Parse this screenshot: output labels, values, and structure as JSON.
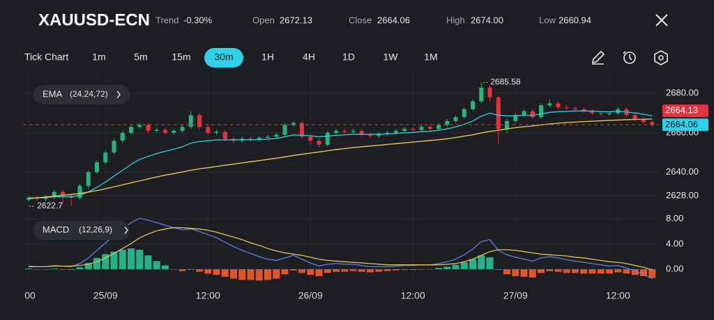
{
  "header": {
    "symbol": "XAUUSD-ECN",
    "stats": [
      {
        "label": "Trend",
        "value": "-0.30%"
      },
      {
        "label": "Open",
        "value": "2672.13"
      },
      {
        "label": "Close",
        "value": "2664.06"
      },
      {
        "label": "High",
        "value": "2674.00"
      },
      {
        "label": "Low",
        "value": "2660.94"
      }
    ]
  },
  "toolbar": {
    "tick_chart": "Tick Chart",
    "intervals": [
      "1m",
      "5m",
      "15m",
      "30m",
      "1H",
      "4H",
      "1D",
      "1W",
      "1M"
    ],
    "active": 3
  },
  "chart_data": [
    {
      "type": "candlestick",
      "indicator": "EMA",
      "indicator_params": "(24,24,72)",
      "open": [
        2626,
        2627,
        2626.5,
        2627.5,
        2630,
        2628,
        2627,
        2633,
        2640,
        2645,
        2650,
        2656,
        2660,
        2663,
        2664,
        2661,
        2661.5,
        2660,
        2661,
        2663,
        2669,
        2663,
        2660,
        2660.5,
        2657,
        2656,
        2657,
        2656.5,
        2657.5,
        2658,
        2659,
        2664,
        2665,
        2658,
        2656,
        2654,
        2660,
        2661,
        2660.5,
        2661,
        2659,
        2658.5,
        2659.5,
        2660,
        2661,
        2662,
        2661.5,
        2663,
        2662,
        2664,
        2666,
        2668,
        2672,
        2676,
        2683,
        2678,
        2662,
        2666,
        2669,
        2671,
        2668,
        2674,
        2675,
        2673,
        2672.5,
        2672,
        2671,
        2670,
        2669.5,
        2670,
        2672,
        2669,
        2667,
        2665.5
      ],
      "high": [
        2628,
        2628,
        2628.5,
        2631,
        2631,
        2629,
        2634,
        2641,
        2646,
        2651,
        2657,
        2661,
        2664,
        2665,
        2665,
        2662.5,
        2662.5,
        2662,
        2664,
        2671,
        2670,
        2664,
        2661.5,
        2661.5,
        2658,
        2658,
        2658,
        2658.5,
        2659,
        2660,
        2665,
        2666,
        2666,
        2659,
        2657,
        2661,
        2662,
        2662,
        2662,
        2662,
        2660,
        2660.5,
        2661,
        2662,
        2663,
        2663,
        2664,
        2664,
        2665,
        2667,
        2669,
        2673,
        2677,
        2685.58,
        2684,
        2679,
        2667,
        2670,
        2672,
        2672,
        2675,
        2677,
        2676,
        2674,
        2673.5,
        2673,
        2672,
        2671,
        2671,
        2673,
        2673,
        2670,
        2668,
        2666.5
      ],
      "low": [
        2625,
        2625.5,
        2625.5,
        2626.5,
        2624,
        2622.7,
        2626,
        2632,
        2639,
        2644,
        2649,
        2655,
        2659,
        2662,
        2660,
        2660,
        2659,
        2659,
        2660,
        2662,
        2662,
        2659,
        2659,
        2655.5,
        2654.5,
        2655,
        2655.5,
        2655.5,
        2656.5,
        2657,
        2658,
        2663,
        2657,
        2654,
        2652.5,
        2653,
        2659,
        2659.5,
        2659.5,
        2658,
        2657.5,
        2657.5,
        2658.5,
        2659,
        2660,
        2660.5,
        2660.5,
        2661,
        2661,
        2663,
        2665,
        2667,
        2671,
        2675,
        2676,
        2654.5,
        2660,
        2665,
        2668,
        2667,
        2667,
        2673,
        2672,
        2671.5,
        2671,
        2670,
        2669,
        2668.5,
        2668.5,
        2669,
        2668,
        2666,
        2664.5,
        2663
      ],
      "close": [
        2627,
        2626.5,
        2627.5,
        2630,
        2628,
        2627,
        2633,
        2640,
        2645,
        2650,
        2656,
        2660,
        2663,
        2664,
        2661,
        2661.5,
        2660,
        2661,
        2663,
        2669,
        2663,
        2660,
        2660.5,
        2657,
        2656,
        2657,
        2656.5,
        2657.5,
        2658,
        2659,
        2664,
        2665,
        2658,
        2656,
        2654,
        2660,
        2661,
        2660.5,
        2661,
        2659,
        2658.5,
        2659.5,
        2660,
        2661,
        2662,
        2661.5,
        2663,
        2662,
        2664,
        2666,
        2668,
        2672,
        2676,
        2683,
        2678,
        2662,
        2666,
        2669,
        2671,
        2668,
        2674,
        2675,
        2673,
        2672.5,
        2672,
        2671,
        2670,
        2669.5,
        2670,
        2672,
        2669,
        2667,
        2665.5,
        2664.06
      ],
      "up_color": "#27b47c",
      "down_color": "#e5323f",
      "series": [
        {
          "color": "#34c6d9",
          "values": [
            2627,
            2627,
            2627.1,
            2627.5,
            2627.6,
            2627.5,
            2628.3,
            2630,
            2632.3,
            2635,
            2638,
            2641,
            2644,
            2646.5,
            2648,
            2649.5,
            2650.6,
            2651.7,
            2652.9,
            2654.8,
            2655.6,
            2656,
            2656.4,
            2656.4,
            2656.4,
            2656.5,
            2656.5,
            2656.6,
            2656.8,
            2657.1,
            2658,
            2658.9,
            2658.8,
            2658.5,
            2658,
            2658.3,
            2658.7,
            2659,
            2659.3,
            2659.2,
            2659.2,
            2659.3,
            2659.4,
            2659.7,
            2660,
            2660.2,
            2660.6,
            2660.8,
            2661.3,
            2662,
            2663,
            2664.3,
            2666,
            2668.5,
            2670,
            2669,
            2668.6,
            2668.6,
            2668.9,
            2668.9,
            2669.6,
            2670.4,
            2670.7,
            2670.9,
            2671.1,
            2671.1,
            2671,
            2670.8,
            2670.7,
            2670.9,
            2670.6,
            2670.1,
            2669.4,
            2668.7
          ]
        },
        {
          "color": "#e2c45a",
          "values": [
            2626.6,
            2627,
            2627.4,
            2627.8,
            2628.3,
            2628.7,
            2629.2,
            2629.9,
            2630.7,
            2631.6,
            2632.6,
            2633.6,
            2634.6,
            2635.6,
            2636.6,
            2637.6,
            2638.5,
            2639.3,
            2640.1,
            2641,
            2641.7,
            2642.3,
            2642.9,
            2643.5,
            2644.1,
            2644.7,
            2645.3,
            2645.9,
            2646.5,
            2647.1,
            2647.8,
            2648.5,
            2649.1,
            2649.7,
            2650.3,
            2650.9,
            2651.5,
            2652,
            2652.5,
            2652.9,
            2653.3,
            2653.7,
            2654.1,
            2654.5,
            2654.9,
            2655.3,
            2655.7,
            2656.1,
            2656.5,
            2657,
            2657.6,
            2658.3,
            2659,
            2659.9,
            2660.7,
            2661.3,
            2662,
            2662.6,
            2663.1,
            2663.5,
            2664,
            2664.5,
            2664.9,
            2665.2,
            2665.5,
            2665.7,
            2665.9,
            2666.1,
            2666.3,
            2666.5,
            2666.7,
            2666.8,
            2666.9,
            2667
          ]
        }
      ],
      "ylim": [
        2619,
        2690
      ],
      "yticks": [
        {
          "value": 2680,
          "label": "2680.00"
        },
        {
          "value": 2660,
          "label": "2660.00"
        },
        {
          "value": 2640,
          "label": "2640.00"
        },
        {
          "value": 2628,
          "label": "2628.00"
        }
      ],
      "grid": true,
      "price_lines": [
        {
          "value": 2664.13,
          "color": "#e5323f"
        },
        {
          "value": 2664.06,
          "color": "#2fd0e8"
        }
      ]
    },
    {
      "type": "macd",
      "indicator": "MACD",
      "indicator_params": "(12,26,9)",
      "series": [
        {
          "color": "#5b82e6",
          "values": [
            0.5,
            0.4,
            0.4,
            0.6,
            0.5,
            0.4,
            0.9,
            1.8,
            3,
            4.2,
            5.3,
            6.4,
            7.4,
            8.1,
            7.8,
            7.4,
            7,
            6.6,
            6.3,
            6.4,
            6,
            5.5,
            5,
            4.3,
            3.6,
            3,
            2.5,
            2,
            1.6,
            1.4,
            1.8,
            2.2,
            1.6,
            1,
            0.5,
            0.8,
            0.9,
            0.8,
            0.8,
            0.6,
            0.4,
            0.4,
            0.4,
            0.5,
            0.6,
            0.6,
            0.7,
            0.7,
            0.9,
            1.2,
            1.6,
            2.3,
            3.2,
            4.4,
            4.7,
            3,
            2.3,
            1.9,
            1.6,
            1.3,
            1.8,
            2,
            1.8,
            1.5,
            1.3,
            1.1,
            0.9,
            0.7,
            0.5,
            0.6,
            0.2,
            -0.3,
            -0.8,
            -1.5
          ]
        },
        {
          "color": "#e2c45a",
          "values": [
            0.4,
            0.4,
            0.4,
            0.5,
            0.5,
            0.5,
            0.6,
            0.8,
            1.2,
            1.8,
            2.5,
            3.3,
            4.1,
            5,
            5.6,
            6.1,
            6.4,
            6.6,
            6.6,
            6.5,
            6.4,
            6.2,
            5.9,
            5.5,
            5.1,
            4.7,
            4.2,
            3.8,
            3.3,
            2.9,
            2.6,
            2.4,
            2.2,
            1.9,
            1.6,
            1.4,
            1.3,
            1.2,
            1.1,
            1,
            0.9,
            0.8,
            0.7,
            0.7,
            0.7,
            0.7,
            0.7,
            0.7,
            0.7,
            0.8,
            0.9,
            1.2,
            1.6,
            2.2,
            2.8,
            3.1,
            3.1,
            3,
            2.8,
            2.6,
            2.4,
            2.3,
            2.2,
            2.1,
            1.9,
            1.8,
            1.6,
            1.4,
            1.2,
            1.1,
            0.9,
            0.6,
            0.3,
            -0.1
          ]
        }
      ],
      "histogram": {
        "values": [
          0.1,
          0,
          0,
          0.1,
          0,
          -0.1,
          0.3,
          1,
          1.8,
          2.4,
          2.8,
          3.1,
          3.3,
          3.1,
          2.2,
          1.3,
          0.6,
          0,
          -0.3,
          -0.1,
          -0.4,
          -0.7,
          -0.9,
          -1.2,
          -1.5,
          -1.7,
          -1.7,
          -1.8,
          -1.7,
          -1.5,
          -0.8,
          -0.2,
          -0.6,
          -0.9,
          -1.1,
          -0.6,
          -0.4,
          -0.4,
          -0.3,
          -0.4,
          -0.5,
          -0.4,
          -0.3,
          -0.2,
          -0.1,
          -0.1,
          0,
          0,
          0.2,
          0.4,
          0.7,
          1.1,
          1.6,
          2.2,
          1.9,
          -0.1,
          -0.8,
          -1.1,
          -1.2,
          -1.3,
          -0.6,
          -0.3,
          -0.4,
          -0.6,
          -0.6,
          -0.7,
          -0.7,
          -0.7,
          -0.7,
          -0.5,
          -0.7,
          -0.9,
          -1.1,
          -1.4
        ],
        "up_color": "#22b38a",
        "down_color": "#e2552a"
      },
      "ylim": [
        -2.1,
        8.3
      ],
      "yticks": [
        {
          "value": 8,
          "label": "8.00"
        },
        {
          "value": 4,
          "label": "4.00"
        },
        {
          "value": 0,
          "label": "0.00"
        }
      ],
      "xticks": [
        {
          "value": 0,
          "label": "00"
        },
        {
          "value": 9,
          "label": "25/09"
        },
        {
          "value": 21,
          "label": "12:00"
        },
        {
          "value": 33,
          "label": "26/09"
        },
        {
          "value": 45,
          "label": "12:00"
        },
        {
          "value": 57,
          "label": "27/09"
        },
        {
          "value": 69,
          "label": "12:00"
        }
      ],
      "grid": true
    }
  ]
}
